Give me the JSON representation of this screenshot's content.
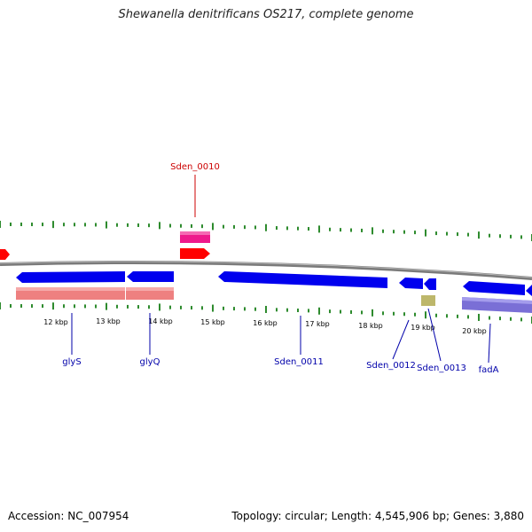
{
  "title": "Shewanella denitrificans OS217, complete genome",
  "footer": {
    "accession": "Accession: NC_007954",
    "summary": "Topology: circular; Length: 4,545,906 bp; Genes: 3,880"
  },
  "colors": {
    "backbone": "#808080",
    "tick": "#2e8b2e",
    "cds_forward": "#ff0000",
    "cds_reverse": "#0000ee",
    "rna": "#ee1a8c",
    "gene_reverse": "#ee8080",
    "misc": "#bdb76b",
    "gene_forward_block": "#7a6fd6",
    "label_blue": "#0000aa",
    "label_red": "#cc0000"
  },
  "scale": {
    "ticks": [
      {
        "label": "12 kbp"
      },
      {
        "label": "13 kbp"
      },
      {
        "label": "14 kbp"
      },
      {
        "label": "15 kbp"
      },
      {
        "label": "16 kbp"
      },
      {
        "label": "17 kbp"
      },
      {
        "label": "18 kbp"
      },
      {
        "label": "19 kbp"
      },
      {
        "label": "20 kbp"
      }
    ]
  },
  "genes": [
    {
      "name": "glyS",
      "strand": "reverse",
      "color": "blue"
    },
    {
      "name": "glyQ",
      "strand": "reverse",
      "color": "blue"
    },
    {
      "name": "Sden_0010",
      "strand": "forward",
      "color": "red"
    },
    {
      "name": "Sden_0011",
      "strand": "reverse",
      "color": "blue"
    },
    {
      "name": "Sden_0012",
      "strand": "reverse",
      "color": "blue"
    },
    {
      "name": "Sden_0013",
      "strand": "reverse",
      "color": "blue"
    },
    {
      "name": "fadA",
      "strand": "reverse",
      "color": "blue"
    }
  ]
}
